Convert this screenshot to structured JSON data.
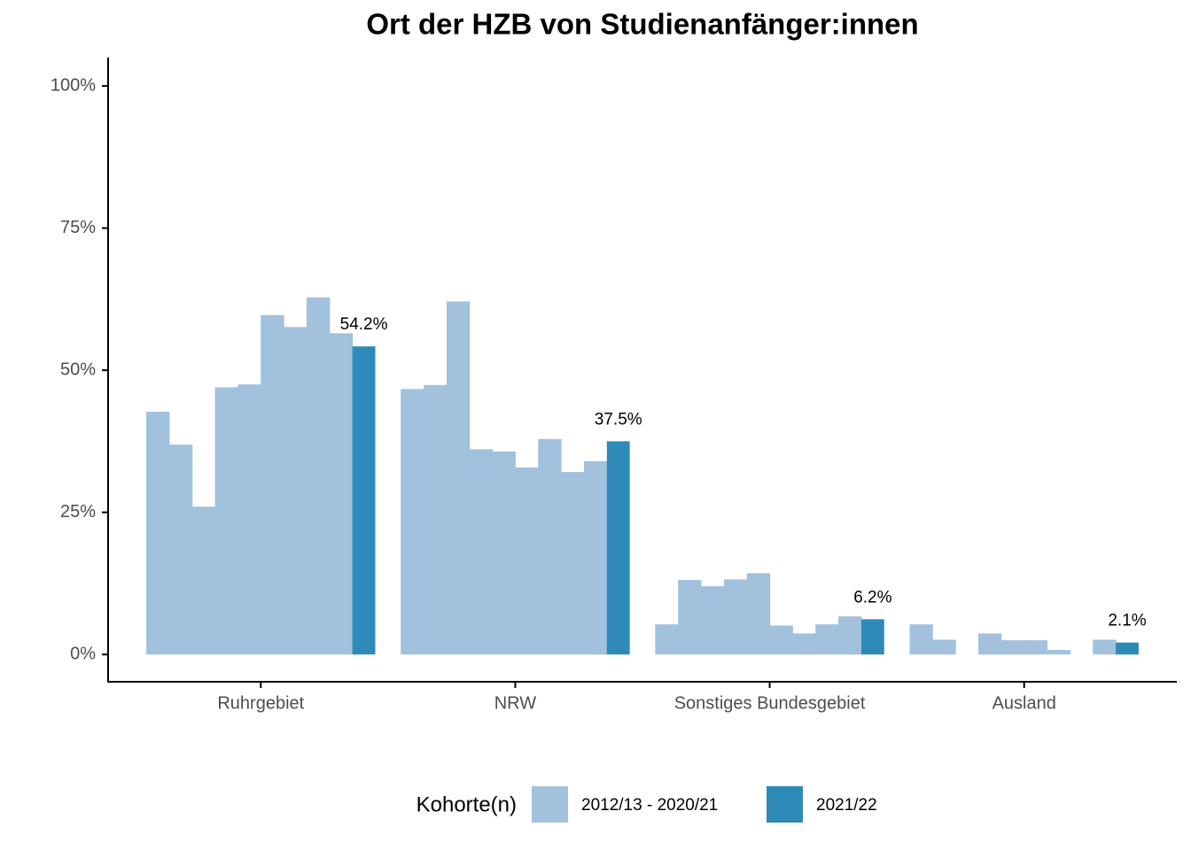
{
  "chart_data": {
    "type": "grouped_bar",
    "title": "Ort der HZB von Studienanfänger:innen",
    "categories": [
      "Ruhrgebiet",
      "NRW",
      "Sonstiges Bundesgebiet",
      "Ausland"
    ],
    "series": [
      {
        "name": "2012/13 - 2020/21",
        "color": "#a1c1dd",
        "values": [
          [
            42.7,
            36.9,
            26.0,
            47.0,
            47.5,
            59.7,
            57.6,
            62.8,
            56.5
          ],
          [
            46.7,
            47.4,
            62.1,
            36.1,
            35.7,
            32.9,
            37.9,
            32.1,
            34.0
          ],
          [
            5.3,
            13.1,
            12.0,
            13.2,
            14.3,
            5.1,
            3.7,
            5.3,
            6.7
          ],
          [
            5.3,
            2.6,
            null,
            3.7,
            2.5,
            2.5,
            0.8,
            null,
            2.6
          ]
        ]
      },
      {
        "name": "2021/22",
        "color": "#2e8ab8",
        "values": [
          54.2,
          37.5,
          6.2,
          2.1
        ],
        "value_labels": [
          "54.2%",
          "37.5%",
          "6.2%",
          "2.1%"
        ]
      }
    ],
    "legend_title": "Kohorte(n)",
    "ylim": [
      -4.8,
      105
    ],
    "yticks": [
      {
        "value": 0,
        "label": "0%"
      },
      {
        "value": 25,
        "label": "25%"
      },
      {
        "value": 50,
        "label": "50%"
      },
      {
        "value": 75,
        "label": "75%"
      },
      {
        "value": 100,
        "label": "100%"
      }
    ]
  }
}
